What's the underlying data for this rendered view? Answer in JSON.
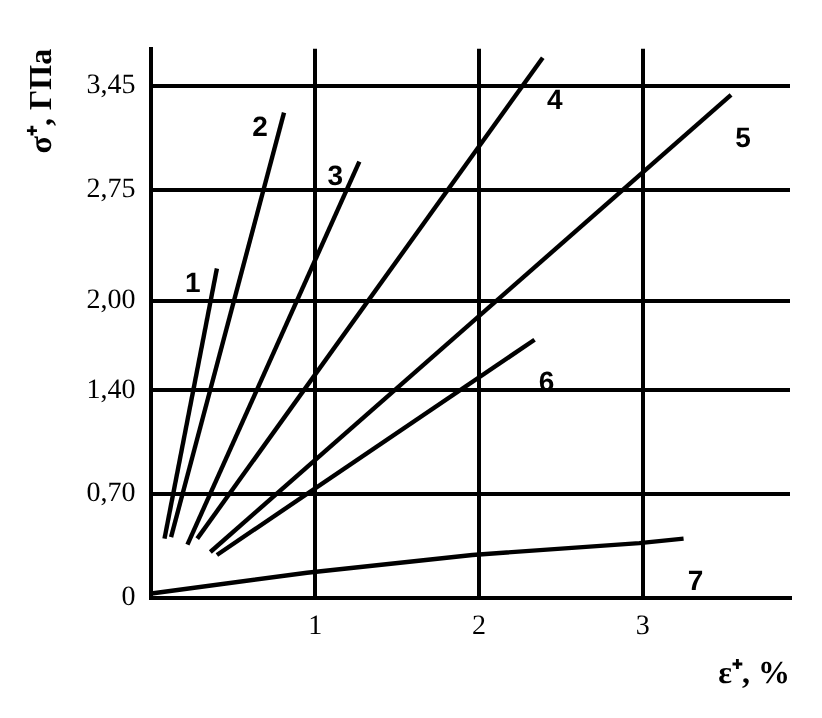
{
  "chart_data": {
    "type": "line",
    "xlabel": "ε⁺, %",
    "ylabel": "σ⁺, ГПа",
    "xlim": [
      0,
      3.9
    ],
    "xticks": [
      1,
      2,
      3
    ],
    "ylim": [
      0,
      3.7
    ],
    "yticks": [
      0,
      {
        "value": 0.7,
        "label": "0,70"
      },
      {
        "value": 1.4,
        "label": "1,40"
      },
      {
        "value": 2.0,
        "label": "2,00"
      },
      {
        "value": 2.75,
        "label": "2,75"
      },
      {
        "value": 3.45,
        "label": "3,45"
      }
    ],
    "grid": true,
    "legend": false,
    "marker": "none",
    "line_style": "solid",
    "series": [
      {
        "name": "1",
        "color": "#000000",
        "x": [
          0.08,
          0.4
        ],
        "values": [
          0.4,
          2.22
        ]
      },
      {
        "name": "2",
        "color": "#000000",
        "x": [
          0.12,
          0.81
        ],
        "values": [
          0.41,
          3.27
        ]
      },
      {
        "name": "3",
        "color": "#000000",
        "x": [
          0.22,
          1.27
        ],
        "values": [
          0.36,
          2.94
        ]
      },
      {
        "name": "4",
        "color": "#000000",
        "x": [
          0.28,
          2.39
        ],
        "values": [
          0.4,
          3.64
        ]
      },
      {
        "name": "5",
        "color": "#000000",
        "x": [
          0.36,
          3.54
        ],
        "values": [
          0.31,
          3.39
        ]
      },
      {
        "name": "6",
        "color": "#000000",
        "x": [
          0.4,
          2.34
        ],
        "values": [
          0.29,
          1.74
        ]
      },
      {
        "name": "7",
        "color": "#000000",
        "x": [
          0,
          0.95,
          1.96,
          2.98,
          3.25
        ],
        "values": [
          0.03,
          0.17,
          0.29,
          0.37,
          0.4
        ]
      }
    ]
  }
}
